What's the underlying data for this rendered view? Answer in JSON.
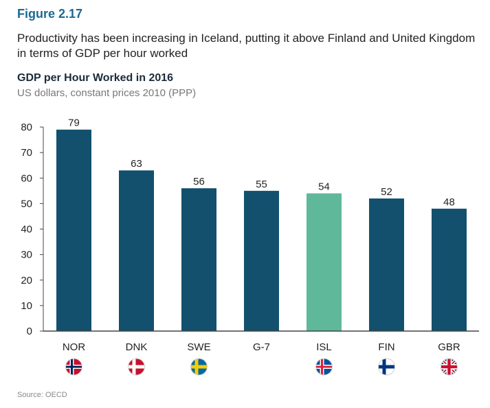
{
  "figure": {
    "label": "Figure 2.17",
    "caption": "Productivity has been increasing in Iceland, putting it above Finland and United Kingdom in terms of GDP per hour worked",
    "source": "Source: OECD"
  },
  "chart_data": {
    "type": "bar",
    "title": "GDP per Hour Worked in 2016",
    "subtitle": "US dollars, constant prices 2010 (PPP)",
    "xlabel": "",
    "ylabel": "",
    "ylim": [
      0,
      80
    ],
    "yticks": [
      0,
      10,
      20,
      30,
      40,
      50,
      60,
      70,
      80
    ],
    "categories": [
      "NOR",
      "DNK",
      "SWE",
      "G-7",
      "ISL",
      "FIN",
      "GBR"
    ],
    "values": [
      79,
      63,
      56,
      55,
      54,
      52,
      48
    ],
    "data_labels": [
      "79",
      "63",
      "56",
      "55",
      "54",
      "52",
      "48"
    ],
    "grid": false,
    "legend": "none",
    "flags": [
      "norway-flag-icon",
      "denmark-flag-icon",
      "sweden-flag-icon",
      "none",
      "iceland-flag-icon",
      "finland-flag-icon",
      "united-kingdom-flag-icon"
    ],
    "colors": {
      "bar": "#12506e",
      "highlight_bar": "#5fb89a",
      "highlight_category": "ISL",
      "axis": "#444444",
      "text": "#222222"
    }
  }
}
